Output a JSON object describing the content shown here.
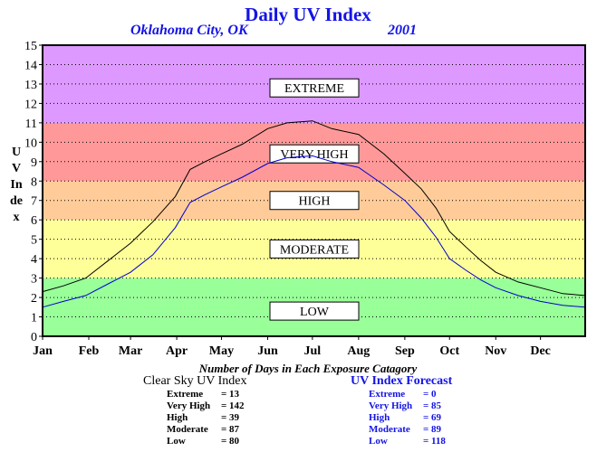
{
  "header": {
    "title": "Daily UV Index",
    "location": "Oklahoma City, OK",
    "year": "2001"
  },
  "chart_data": {
    "type": "line",
    "ylabel": "UV Index",
    "ylim": [
      0,
      15
    ],
    "y_ticks": [
      "0",
      "1",
      "2",
      "3",
      "4",
      "5",
      "6",
      "7",
      "8",
      "9",
      "10",
      "11",
      "12",
      "13",
      "14",
      "15"
    ],
    "x_ticks": [
      "Jan",
      "Feb",
      "Mar",
      "Apr",
      "May",
      "Jun",
      "Jul",
      "Aug",
      "Sep",
      "Oct",
      "Nov",
      "Dec"
    ],
    "x_tick_days": [
      1,
      32,
      60,
      91,
      121,
      152,
      182,
      213,
      244,
      274,
      305,
      335
    ],
    "xlim": [
      1,
      365
    ],
    "grid": "horizontal dotted",
    "exposure_bands": [
      {
        "label": "LOW",
        "from": 0,
        "to": 3,
        "color": "#99ff99"
      },
      {
        "label": "MODERATE",
        "from": 3,
        "to": 6,
        "color": "#ffff99"
      },
      {
        "label": "HIGH",
        "from": 6,
        "to": 8,
        "color": "#ffcc99"
      },
      {
        "label": "VERY HIGH",
        "from": 8,
        "to": 11,
        "color": "#ff9999"
      },
      {
        "label": "EXTREME",
        "from": 11,
        "to": 15,
        "color": "#dd99ff"
      }
    ],
    "series": [
      {
        "name": "Clear Sky UV Index",
        "color": "#000000",
        "x": [
          1,
          15,
          30,
          45,
          60,
          75,
          90,
          100,
          110,
          121,
          135,
          152,
          165,
          182,
          195,
          213,
          230,
          244,
          255,
          265,
          274,
          285,
          295,
          305,
          320,
          335,
          350,
          365
        ],
        "y": [
          2.3,
          2.6,
          3.0,
          3.9,
          4.8,
          5.9,
          7.2,
          8.6,
          9.0,
          9.4,
          9.9,
          10.7,
          11.0,
          11.1,
          10.7,
          10.4,
          9.4,
          8.4,
          7.6,
          6.6,
          5.4,
          4.6,
          3.9,
          3.3,
          2.8,
          2.5,
          2.2,
          2.1
        ]
      },
      {
        "name": "UV Index Forecast",
        "color": "#0000cc",
        "x": [
          1,
          15,
          30,
          45,
          60,
          75,
          90,
          100,
          110,
          121,
          135,
          152,
          165,
          182,
          195,
          213,
          230,
          244,
          255,
          265,
          274,
          285,
          295,
          305,
          320,
          335,
          350,
          365
        ],
        "y": [
          1.5,
          1.8,
          2.1,
          2.7,
          3.3,
          4.2,
          5.6,
          6.9,
          7.3,
          7.7,
          8.2,
          8.9,
          9.2,
          9.3,
          9.0,
          8.7,
          7.8,
          7.0,
          6.1,
          5.1,
          4.0,
          3.4,
          2.9,
          2.5,
          2.1,
          1.8,
          1.6,
          1.5
        ]
      }
    ]
  },
  "stats": {
    "caption": "Number of Days in Each Exposure Catagory",
    "clear_sky": {
      "title": "Clear Sky UV Index",
      "rows": [
        {
          "label": "Extreme",
          "value": "13"
        },
        {
          "label": "Very High",
          "value": "142"
        },
        {
          "label": "High",
          "value": "39"
        },
        {
          "label": "Moderate",
          "value": "87"
        },
        {
          "label": "Low",
          "value": "80"
        }
      ]
    },
    "forecast": {
      "title": "UV Index Forecast",
      "rows": [
        {
          "label": "Extreme",
          "value": "0"
        },
        {
          "label": "Very High",
          "value": "85"
        },
        {
          "label": "High",
          "value": "69"
        },
        {
          "label": "Moderate",
          "value": "89"
        },
        {
          "label": "Low",
          "value": "118"
        }
      ]
    }
  }
}
